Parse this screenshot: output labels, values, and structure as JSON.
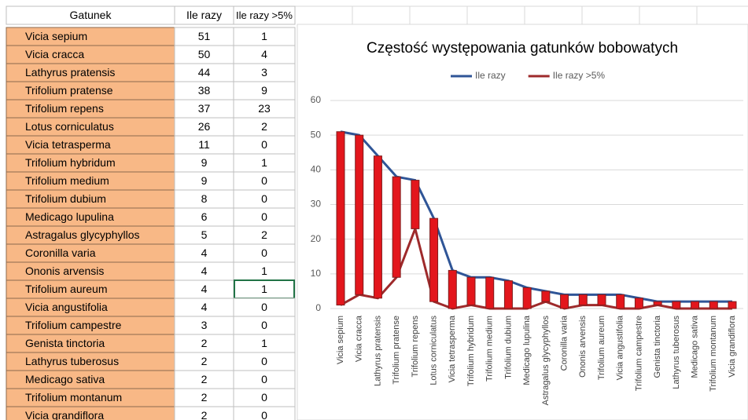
{
  "table": {
    "header": [
      "Gatunek",
      "Ile razy",
      "Ile razy >5%"
    ],
    "rows": [
      [
        "Vicia sepium",
        51,
        1
      ],
      [
        "Vicia cracca",
        50,
        4
      ],
      [
        "Lathyrus pratensis",
        44,
        3
      ],
      [
        "Trifolium pratense",
        38,
        9
      ],
      [
        "Trifolium repens",
        37,
        23
      ],
      [
        "Lotus corniculatus",
        26,
        2
      ],
      [
        "Vicia tetrasperma",
        11,
        0
      ],
      [
        "Trifolium hybridum",
        9,
        1
      ],
      [
        "Trifolium medium",
        9,
        0
      ],
      [
        "Trifolium dubium",
        8,
        0
      ],
      [
        "Medicago lupulina",
        6,
        0
      ],
      [
        "Astragalus glycyphyllos",
        5,
        2
      ],
      [
        "Coronilla varia",
        4,
        0
      ],
      [
        "Ononis arvensis",
        4,
        1
      ],
      [
        "Trifolium aureum",
        4,
        1
      ],
      [
        "Vicia angustifolia",
        4,
        0
      ],
      [
        "Trifolium campestre",
        3,
        0
      ],
      [
        "Genista tinctoria",
        2,
        1
      ],
      [
        "Lathyrus tuberosus",
        2,
        0
      ],
      [
        "Medicago sativa",
        2,
        0
      ],
      [
        "Trifolium montanum",
        2,
        0
      ],
      [
        "Vicia grandiflora",
        2,
        0
      ]
    ]
  },
  "chart_data": {
    "type": "line",
    "title": "Częstość występowania gatunków bobowatych",
    "categories": [
      "Vicia sepium",
      "Vicia cracca",
      "Lathyrus pratensis",
      "Trifolium pratense",
      "Trifolium repens",
      "Lotus corniculatus",
      "Vicia tetrasperma",
      "Trifolium hybridum",
      "Trifolium medium",
      "Trifolium dubium",
      "Medicago lupulina",
      "Astragalus glycyphyllos",
      "Coronilla varia",
      "Ononis arvensis",
      "Trifolium aureum",
      "Vicia angustifolia",
      "Trifolium campestre",
      "Genista tinctoria",
      "Lathyrus tuberosus",
      "Medicago sativa",
      "Trifolium montanum",
      "Vicia grandiflora"
    ],
    "series": [
      {
        "name": "Ile razy",
        "color": "#2f5597",
        "values": [
          51,
          50,
          44,
          38,
          37,
          26,
          11,
          9,
          9,
          8,
          6,
          5,
          4,
          4,
          4,
          4,
          3,
          2,
          2,
          2,
          2,
          2
        ]
      },
      {
        "name": "Ile razy >5%",
        "color": "#9e2a2b",
        "values": [
          1,
          4,
          3,
          9,
          23,
          2,
          0,
          1,
          0,
          0,
          0,
          2,
          0,
          1,
          1,
          0,
          0,
          1,
          0,
          0,
          0,
          0
        ]
      }
    ],
    "updown_bar_color": "#e3161c",
    "ylim": [
      0,
      60
    ],
    "yticks": [
      0,
      10,
      20,
      30,
      40,
      50,
      60
    ],
    "grid": true,
    "legend": "top"
  }
}
